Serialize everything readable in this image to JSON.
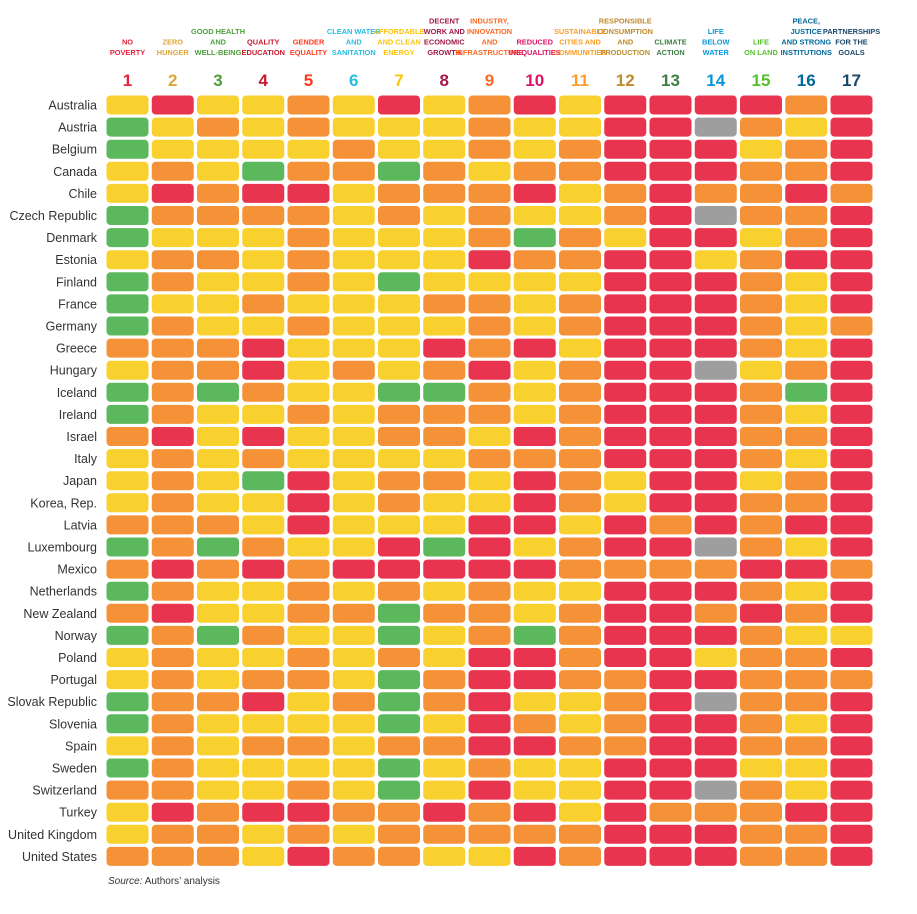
{
  "chart_data": {
    "type": "heatmap",
    "goals": [
      {
        "number": "1",
        "label": [
          "NO",
          "POVERTY"
        ],
        "color": "#E5243B"
      },
      {
        "number": "2",
        "label": [
          "ZERO",
          "HUNGER"
        ],
        "color": "#DDA63A"
      },
      {
        "number": "3",
        "label": [
          "GOOD HEALTH",
          "AND",
          "WELL-BEING"
        ],
        "color": "#4C9F38"
      },
      {
        "number": "4",
        "label": [
          "QUALITY",
          "EDUCATION"
        ],
        "color": "#C5192D"
      },
      {
        "number": "5",
        "label": [
          "GENDER",
          "EQUALITY"
        ],
        "color": "#FF3A21"
      },
      {
        "number": "6",
        "label": [
          "CLEAN WATER",
          "AND",
          "SANITATION"
        ],
        "color": "#26BDE2"
      },
      {
        "number": "7",
        "label": [
          "AFFORDABLE",
          "AND CLEAN",
          "ENERGY"
        ],
        "color": "#FCC30B"
      },
      {
        "number": "8",
        "label": [
          "DECENT",
          "WORK AND",
          "ECONOMIC",
          "GROWTH"
        ],
        "color": "#A21942"
      },
      {
        "number": "9",
        "label": [
          "INDUSTRY,",
          "INNOVATION",
          "AND",
          "INFRASTRUCTURE"
        ],
        "color": "#FD6925"
      },
      {
        "number": "10",
        "label": [
          "REDUCED",
          "INEQUALITIES"
        ],
        "color": "#DD1367"
      },
      {
        "number": "11",
        "label": [
          "SUSTAINABLE",
          "CITIES AND",
          "COMMUNITIES"
        ],
        "color": "#FD9D24"
      },
      {
        "number": "12",
        "label": [
          "RESPONSIBLE",
          "CONSUMPTION",
          "AND",
          "PRODUCTION"
        ],
        "color": "#BF8B2E"
      },
      {
        "number": "13",
        "label": [
          "CLIMATE",
          "ACTION"
        ],
        "color": "#3F7E44"
      },
      {
        "number": "14",
        "label": [
          "LIFE",
          "BELOW",
          "WATER"
        ],
        "color": "#0A97D9"
      },
      {
        "number": "15",
        "label": [
          "LIFE",
          "ON LAND"
        ],
        "color": "#56C02B"
      },
      {
        "number": "16",
        "label": [
          "PEACE,",
          "JUSTICE",
          "AND STRONG",
          "INSTITUTIONS"
        ],
        "color": "#00689D"
      },
      {
        "number": "17",
        "label": [
          "PARTNERSHIPS",
          "FOR THE",
          "GOALS"
        ],
        "color": "#19486A"
      }
    ],
    "status_colors": {
      "G": "#5CB85C",
      "Y": "#F8D12F",
      "O": "#F59238",
      "R": "#E8344E",
      "N": "#9E9E9E"
    },
    "countries": [
      {
        "name": "Australia",
        "status": "YRYYOYRYORYRRRROR"
      },
      {
        "name": "Austria",
        "status": "GYOYOYYYOYYRRNOYR"
      },
      {
        "name": "Belgium",
        "status": "GYYYYOYYOYORRRYOR"
      },
      {
        "name": "Canada",
        "status": "YOYGOOGOYOORRROOR"
      },
      {
        "name": "Chile",
        "status": "YRORRYOOORYOROORO"
      },
      {
        "name": "Czech Republic",
        "status": "GOOOOYOYOYYORNOOR"
      },
      {
        "name": "Denmark",
        "status": "GYYYOYYYOGOYRRYOR"
      },
      {
        "name": "Estonia",
        "status": "YOOYOYYYROORRYORR"
      },
      {
        "name": "Finland",
        "status": "GOYYOYGYYYYRRROYR"
      },
      {
        "name": "France",
        "status": "GYYOYYYOOYORRROYR"
      },
      {
        "name": "Germany",
        "status": "GOYYOYYYOYORRROYO"
      },
      {
        "name": "Greece",
        "status": "OOORYYYRORYRRROYR"
      },
      {
        "name": "Hungary",
        "status": "YOORYOYORYORRNYOR"
      },
      {
        "name": "Iceland",
        "status": "GOGOYYGGOYORRROGR"
      },
      {
        "name": "Ireland",
        "status": "GOYYOYOOOYORRROYR"
      },
      {
        "name": "Israel",
        "status": "ORYRYYOOYRORRROOR"
      },
      {
        "name": "Italy",
        "status": "YOYOYYYYOOORRROYR"
      },
      {
        "name": "Japan",
        "status": "YOYGRYOOYROYRRYOR"
      },
      {
        "name": "Korea, Rep.",
        "status": "YOYYRYOYYROYRROOR"
      },
      {
        "name": "Latvia",
        "status": "OOOYRYYYRRYRORORR"
      },
      {
        "name": "Luxembourg",
        "status": "GOGOYYRGRYORRNOYR"
      },
      {
        "name": "Mexico",
        "status": "ORORORRRRROOOORRO"
      },
      {
        "name": "Netherlands",
        "status": "GOYYOYOYOYYRRROYR"
      },
      {
        "name": "New Zealand",
        "status": "ORYYOOGOOYORROROR"
      },
      {
        "name": "Norway",
        "status": "GOGOYYGYOGORRROYY"
      },
      {
        "name": "Poland",
        "status": "YOYYOYOYRRORRYOOR"
      },
      {
        "name": "Portugal",
        "status": "YOYOOYGORROORROOO"
      },
      {
        "name": "Slovak Republic",
        "status": "GOORYOGORYYORNOOR"
      },
      {
        "name": "Slovenia",
        "status": "GOYYYYGYROYORROYR"
      },
      {
        "name": "Spain",
        "status": "YOYOOYOORROORROOR"
      },
      {
        "name": "Sweden",
        "status": "GOYYYYGYOYYRRRYYR"
      },
      {
        "name": "Switzerland",
        "status": "OOYYOYGYRYYRRNOYR"
      },
      {
        "name": "Turkey",
        "status": "YRORROORORYROOORR"
      },
      {
        "name": "United Kingdom",
        "status": "YOOYOYOOOOORRROOR"
      },
      {
        "name": "United States",
        "status": "OOOYROOYYRORRROOR"
      }
    ]
  },
  "source": {
    "label": "Source:",
    "text": " Authors’ analysis"
  }
}
